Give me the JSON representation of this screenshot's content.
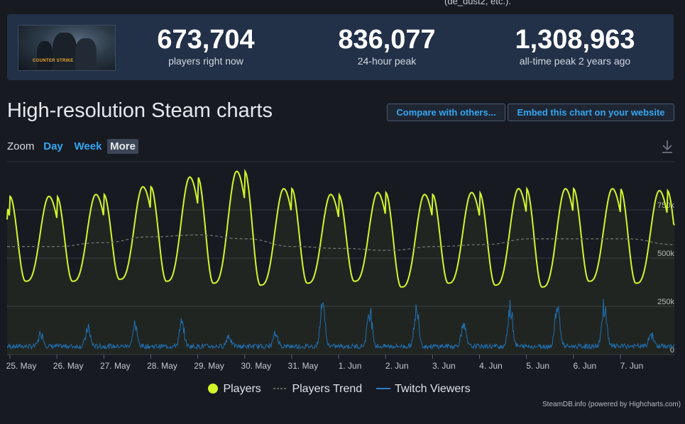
{
  "top_text": "(de_dust2, etc.).",
  "stats": [
    {
      "value": "673,704",
      "label": "players right now"
    },
    {
      "value": "836,077",
      "label": "24-hour peak"
    },
    {
      "value": "1,308,963",
      "label": "all-time peak 2 years ago"
    }
  ],
  "logo_text": "COUNTER STRIKE",
  "title": "High-resolution Steam charts",
  "buttons": {
    "compare": "Compare with others...",
    "embed": "Embed this chart on your website"
  },
  "zoom": {
    "label": "Zoom",
    "options": [
      "Day",
      "Week",
      "More"
    ],
    "active": "More"
  },
  "icons": {
    "download": "download-icon"
  },
  "colors": {
    "players": "#d1f72a",
    "trend": "#6e7468",
    "twitch": "#1f6fb0",
    "accent": "#33a6f2"
  },
  "chart_data": {
    "type": "line",
    "x_ticks": [
      "25. May",
      "26. May",
      "27. May",
      "28. May",
      "29. May",
      "30. May",
      "31. May",
      "1. Jun",
      "2. Jun",
      "3. Jun",
      "4. Jun",
      "5. Jun",
      "6. Jun",
      "7. Jun"
    ],
    "y_ticks": [
      "0",
      "250k",
      "500k",
      "750k"
    ],
    "ylim": [
      0,
      1000000
    ],
    "grid": true,
    "legend_position": "bottom",
    "series": [
      {
        "name": "Players",
        "style": "line",
        "daily_peaks": [
          820000,
          830000,
          870000,
          920000,
          950000,
          860000,
          830000,
          840000,
          830000,
          840000,
          860000,
          860000,
          860000,
          850000
        ],
        "daily_troughs": [
          380000,
          380000,
          390000,
          380000,
          370000,
          360000,
          370000,
          380000,
          350000,
          370000,
          360000,
          350000,
          380000,
          370000
        ],
        "start": 700000,
        "end": 670000
      },
      {
        "name": "Players Trend",
        "style": "dashed",
        "values": [
          560000,
          560000,
          580000,
          610000,
          620000,
          600000,
          560000,
          550000,
          540000,
          560000,
          570000,
          600000,
          600000,
          600000,
          570000
        ]
      },
      {
        "name": "Twitch Viewers",
        "style": "line",
        "daily_peaks": [
          120000,
          150000,
          160000,
          180000,
          100000,
          110000,
          290000,
          280000,
          270000,
          170000,
          290000,
          300000,
          300000,
          110000
        ],
        "base": 30000
      }
    ],
    "credit": "SteamDB.info (powered by Highcharts.com)"
  }
}
